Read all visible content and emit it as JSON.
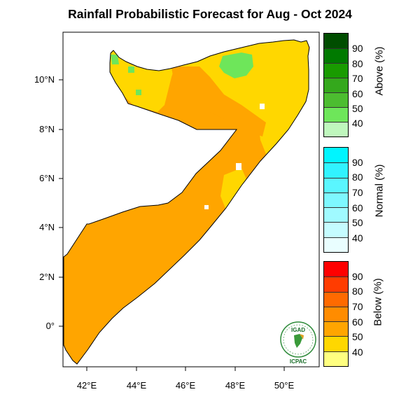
{
  "title": "Rainfall Probabilistic Forecast for Aug - Oct 2024",
  "map": {
    "y_axis_labels": [
      "10°N",
      "8°N",
      "6°N",
      "4°N",
      "2°N",
      "0°"
    ],
    "x_axis_labels": [
      "42°E",
      "44°E",
      "46°E",
      "48°E",
      "50°E"
    ],
    "lon_range": [
      41,
      51.3
    ],
    "lat_range": [
      -1.7,
      12
    ]
  },
  "legend": {
    "above": {
      "label": "Above (%)",
      "ticks": [
        "90",
        "80",
        "70",
        "60",
        "50",
        "40"
      ],
      "colors": [
        "#004d00",
        "#007a00",
        "#199b00",
        "#34a81c",
        "#4cbd30",
        "#6ee65a",
        "#bff7bd"
      ]
    },
    "normal": {
      "label": "Normal (%)",
      "ticks": [
        "90",
        "80",
        "70",
        "60",
        "50",
        "40"
      ],
      "colors": [
        "#00f5ff",
        "#31f3ff",
        "#5af6ff",
        "#7ef8ff",
        "#a0faff",
        "#c5fcff",
        "#e9feff"
      ]
    },
    "below": {
      "label": "Below (%)",
      "ticks": [
        "90",
        "80",
        "70",
        "60",
        "50",
        "40"
      ],
      "colors": [
        "#ff0000",
        "#ff3c00",
        "#ff6a00",
        "#ff8c00",
        "#ffa500",
        "#ffd700",
        "#ffff80"
      ]
    }
  },
  "map_colors": {
    "below_60": "#ffa500",
    "below_50": "#ffd700",
    "above_50": "#6ee65a",
    "above_60": "#4cbd30",
    "border": "#000000"
  },
  "logo": {
    "top_text": "IGAD",
    "bottom_text": "ICPAC"
  }
}
